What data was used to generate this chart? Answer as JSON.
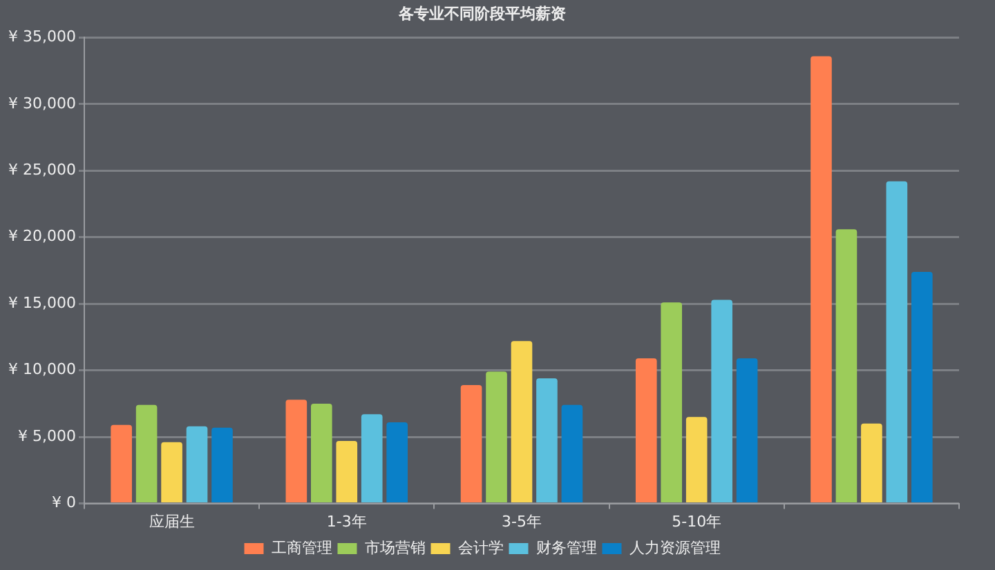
{
  "chart_data": {
    "type": "bar",
    "title": "各专业不同阶段平均薪资",
    "categories": [
      "应届生",
      "1-3年",
      "3-5年",
      "5-10年",
      null
    ],
    "series": [
      {
        "name": "工商管理",
        "color": "#ff7f50",
        "values": [
          5900,
          7800,
          8900,
          10900,
          33600
        ]
      },
      {
        "name": "市场营销",
        "color": "#9ccc5a",
        "values": [
          7400,
          7500,
          9900,
          15100,
          20600
        ]
      },
      {
        "name": "会计学",
        "color": "#f8d552",
        "values": [
          4600,
          4700,
          12200,
          6500,
          6000
        ]
      },
      {
        "name": "财务管理",
        "color": "#5bc0de",
        "values": [
          5800,
          6700,
          9400,
          15300,
          24200
        ]
      },
      {
        "name": "人力资源管理",
        "color": "#0a80c8",
        "values": [
          5700,
          6100,
          7400,
          10900,
          17400
        ]
      }
    ],
    "ylim": [
      0,
      35000
    ],
    "yticks": [
      {
        "value": 0,
        "label": "¥ 0"
      },
      {
        "value": 5000,
        "label": "¥ 5,000"
      },
      {
        "value": 10000,
        "label": "¥ 10,000"
      },
      {
        "value": 15000,
        "label": "¥ 15,000"
      },
      {
        "value": 20000,
        "label": "¥ 20,000"
      },
      {
        "value": 25000,
        "label": "¥ 25,000"
      },
      {
        "value": 30000,
        "label": "¥ 30,000"
      },
      {
        "value": 35000,
        "label": "¥ 35,000"
      }
    ],
    "grid": "y",
    "legend": "bottom"
  }
}
